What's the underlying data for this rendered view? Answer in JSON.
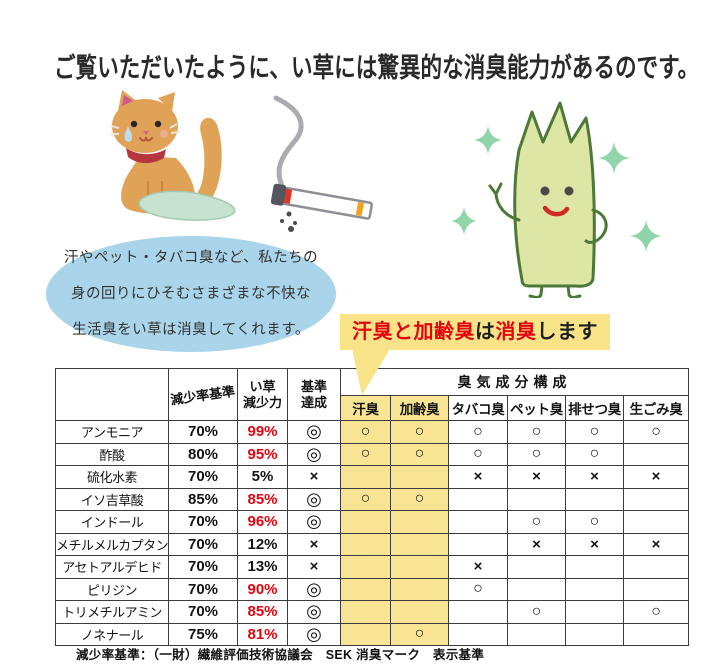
{
  "title": "ご覧いただいたように、い草には驚異的な消臭能力があるのです。",
  "bubble": {
    "line1": "汗やペット・タバコ臭など、私たちの",
    "line2": "身の回りにひそむさまざまな不快な",
    "line3": "生活臭をい草は消臭してくれます。"
  },
  "callout": {
    "segments": [
      {
        "text": "汗臭と加齢臭",
        "color": "red"
      },
      {
        "text": "は",
        "color": "black"
      },
      {
        "text": "消臭",
        "color": "red"
      },
      {
        "text": "します",
        "color": "black"
      }
    ]
  },
  "table": {
    "col_standard": "減少率基準",
    "col_igusa_line1": "い草",
    "col_igusa_line2": "減少力",
    "col_pass_line1": "基準",
    "col_pass_line2": "達成",
    "odor_group": "臭気成分構成",
    "odor_headers": [
      "汗臭",
      "加齢臭",
      "タバコ臭",
      "ペット臭",
      "排せつ臭",
      "生ごみ臭"
    ],
    "rows": [
      {
        "name": "アンモニア",
        "standard": "70%",
        "igusa": "99%",
        "igusa_red": true,
        "pass": "◎",
        "odors": [
          "○",
          "○",
          "○",
          "○",
          "○",
          "○"
        ]
      },
      {
        "name": "酢酸",
        "standard": "80%",
        "igusa": "95%",
        "igusa_red": true,
        "pass": "◎",
        "odors": [
          "○",
          "○",
          "○",
          "○",
          "○",
          ""
        ]
      },
      {
        "name": "硫化水素",
        "standard": "70%",
        "igusa": "5%",
        "igusa_red": false,
        "pass": "×",
        "odors": [
          "",
          "",
          "×",
          "×",
          "×",
          "×"
        ]
      },
      {
        "name": "イソ吉草酸",
        "standard": "85%",
        "igusa": "85%",
        "igusa_red": true,
        "pass": "◎",
        "odors": [
          "○",
          "○",
          "",
          "",
          "",
          ""
        ]
      },
      {
        "name": "インドール",
        "standard": "70%",
        "igusa": "96%",
        "igusa_red": true,
        "pass": "◎",
        "odors": [
          "",
          "",
          "",
          "○",
          "○",
          ""
        ]
      },
      {
        "name": "メチルメルカプタン",
        "standard": "70%",
        "igusa": "12%",
        "igusa_red": false,
        "pass": "×",
        "odors": [
          "",
          "",
          "",
          "×",
          "×",
          "×"
        ]
      },
      {
        "name": "アセトアルデヒド",
        "standard": "70%",
        "igusa": "13%",
        "igusa_red": false,
        "pass": "×",
        "odors": [
          "",
          "",
          "×",
          "",
          "",
          ""
        ]
      },
      {
        "name": "ピリジン",
        "standard": "70%",
        "igusa": "90%",
        "igusa_red": true,
        "pass": "◎",
        "odors": [
          "",
          "",
          "○",
          "",
          "",
          ""
        ]
      },
      {
        "name": "トリメチルアミン",
        "standard": "70%",
        "igusa": "85%",
        "igusa_red": true,
        "pass": "◎",
        "odors": [
          "",
          "",
          "",
          "○",
          "",
          "○"
        ]
      },
      {
        "name": "ノネナール",
        "standard": "75%",
        "igusa": "81%",
        "igusa_red": true,
        "pass": "◎",
        "odors": [
          "",
          "○",
          "",
          "",
          "",
          ""
        ]
      }
    ]
  },
  "footer": "減少率基準：（一財）繊維評価技術協議会　SEK 消臭マーク　表示基準",
  "icons": {
    "cat": "cat-peeing-illustration",
    "cigarette": "smoking-cigarette-illustration",
    "mascot": "igusa-grass-mascot-illustration",
    "sparkle": "sparkle-icon"
  },
  "colors": {
    "accent_red": "#e2040f",
    "highlight_yellow": "#f8e389",
    "column_highlight_yellow": "#f8e493",
    "bubble_blue": "#a9d4ea",
    "table_border": "#3c3c3c",
    "cat_orange": "#e0a257",
    "collar_red": "#b5373e",
    "puddle_green": "#c7e3d0",
    "smoke_gray": "#a7a7ae",
    "ember_red": "#e23327",
    "filter_orange": "#f4a11d",
    "mascot_green": "#dde6a4",
    "mascot_outline": "#4c7a36",
    "sparkle_green": "#8fd5a9"
  }
}
